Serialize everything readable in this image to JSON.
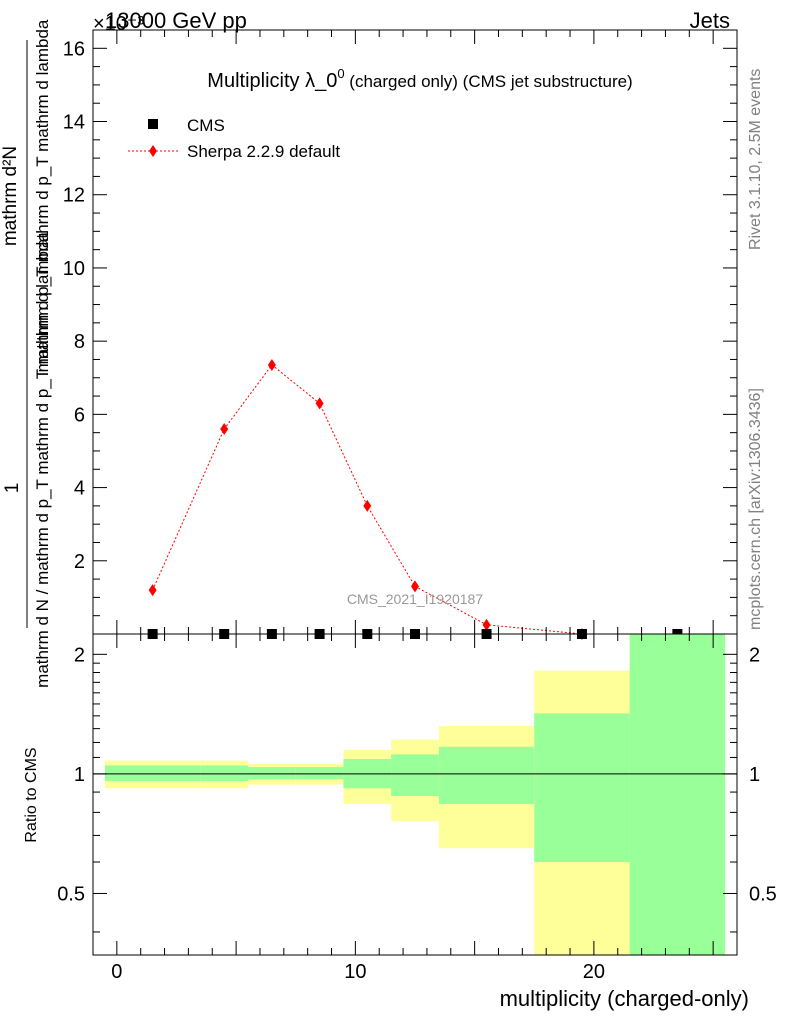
{
  "header": {
    "left": "13000 GeV pp",
    "right": "Jets",
    "exponent": "×10⁻³"
  },
  "side_labels": {
    "rivet": "Rivet 3.1.10,  2.5M events",
    "mcplots": "mcplots.cern.ch [arXiv:1306.3436]"
  },
  "watermark": "CMS_2021_I1920187",
  "colors": {
    "cms": "#000000",
    "sherpa": "#ff0000",
    "band_inner": "#99ff99",
    "band_outer": "#ffff99"
  },
  "chart_data": [
    {
      "type": "scatter",
      "title": "Multiplicity λ_0⁰ (charged only) (CMS jet substructure)",
      "title_main": "Multiplicity λ_0",
      "title_sup": "0",
      "title_rest": " (charged only) (CMS jet substructure)",
      "ylabel_top": "1",
      "ylabel_bottom": "mathrm d N / mathrm d p_T mathrm d p_T mathrm d lambda",
      "ylabel_numerator": "mathrm d²N",
      "ylabel_denominator": "mathrm d p_T mathrm d p_T mathrm d lambda",
      "y_multiplier": "×10⁻³",
      "xlim": [
        -1,
        26
      ],
      "ylim": [
        0,
        16.5
      ],
      "yticks": [
        {
          "v": 2,
          "label": "2"
        },
        {
          "v": 4,
          "label": "4"
        },
        {
          "v": 6,
          "label": "6"
        },
        {
          "v": 8,
          "label": "8"
        },
        {
          "v": 10,
          "label": "10"
        },
        {
          "v": 12,
          "label": "12"
        },
        {
          "v": 14,
          "label": "14"
        },
        {
          "v": 16,
          "label": "16"
        }
      ],
      "legend": [
        {
          "name": "CMS"
        },
        {
          "name": "Sherpa 2.2.9 default"
        }
      ],
      "series": [
        {
          "name": "CMS",
          "x": [
            1.5,
            4.5,
            6.5,
            8.5,
            10.5,
            12.5,
            15.5,
            19.5,
            23.5
          ],
          "y": [
            0,
            0,
            0,
            0,
            0,
            0,
            0,
            0,
            0
          ]
        },
        {
          "name": "Sherpa 2.2.9 default",
          "x": [
            1.5,
            4.5,
            6.5,
            8.5,
            10.5,
            12.5,
            15.5,
            19.5
          ],
          "y": [
            1.2,
            5.6,
            7.35,
            6.3,
            3.5,
            1.3,
            0.25,
            0.0
          ]
        }
      ]
    },
    {
      "type": "area",
      "ylabel": "Ratio to CMS",
      "xlabel": "multiplicity (charged-only)",
      "xlim": [
        -1,
        26
      ],
      "ylim": [
        0.35,
        2.25
      ],
      "log_y": true,
      "reference": 1,
      "xticks": [
        {
          "v": 0,
          "label": "0"
        },
        {
          "v": 10,
          "label": "10"
        },
        {
          "v": 20,
          "label": "20"
        }
      ],
      "yticks": [
        {
          "v": 0.5,
          "label": "0.5"
        },
        {
          "v": 1,
          "label": "1"
        },
        {
          "v": 2,
          "label": "2"
        }
      ],
      "bands": [
        {
          "x0": -0.5,
          "x1": 3.5,
          "inner": [
            0.96,
            1.05
          ],
          "outer": [
            0.92,
            1.08
          ]
        },
        {
          "x0": 3.5,
          "x1": 5.5,
          "inner": [
            0.96,
            1.05
          ],
          "outer": [
            0.92,
            1.08
          ]
        },
        {
          "x0": 5.5,
          "x1": 7.5,
          "inner": [
            0.97,
            1.04
          ],
          "outer": [
            0.94,
            1.06
          ]
        },
        {
          "x0": 7.5,
          "x1": 9.5,
          "inner": [
            0.97,
            1.04
          ],
          "outer": [
            0.94,
            1.06
          ]
        },
        {
          "x0": 9.5,
          "x1": 11.5,
          "inner": [
            0.92,
            1.09
          ],
          "outer": [
            0.84,
            1.15
          ]
        },
        {
          "x0": 11.5,
          "x1": 13.5,
          "inner": [
            0.88,
            1.12
          ],
          "outer": [
            0.76,
            1.22
          ]
        },
        {
          "x0": 13.5,
          "x1": 17.5,
          "inner": [
            0.84,
            1.17
          ],
          "outer": [
            0.65,
            1.32
          ]
        },
        {
          "x0": 17.5,
          "x1": 21.5,
          "inner": [
            0.6,
            1.42
          ],
          "outer": [
            0.35,
            1.82
          ]
        },
        {
          "x0": 21.5,
          "x1": 25.5,
          "inner": [
            0.35,
            2.25
          ],
          "outer": [
            0.35,
            2.25
          ]
        }
      ]
    }
  ]
}
